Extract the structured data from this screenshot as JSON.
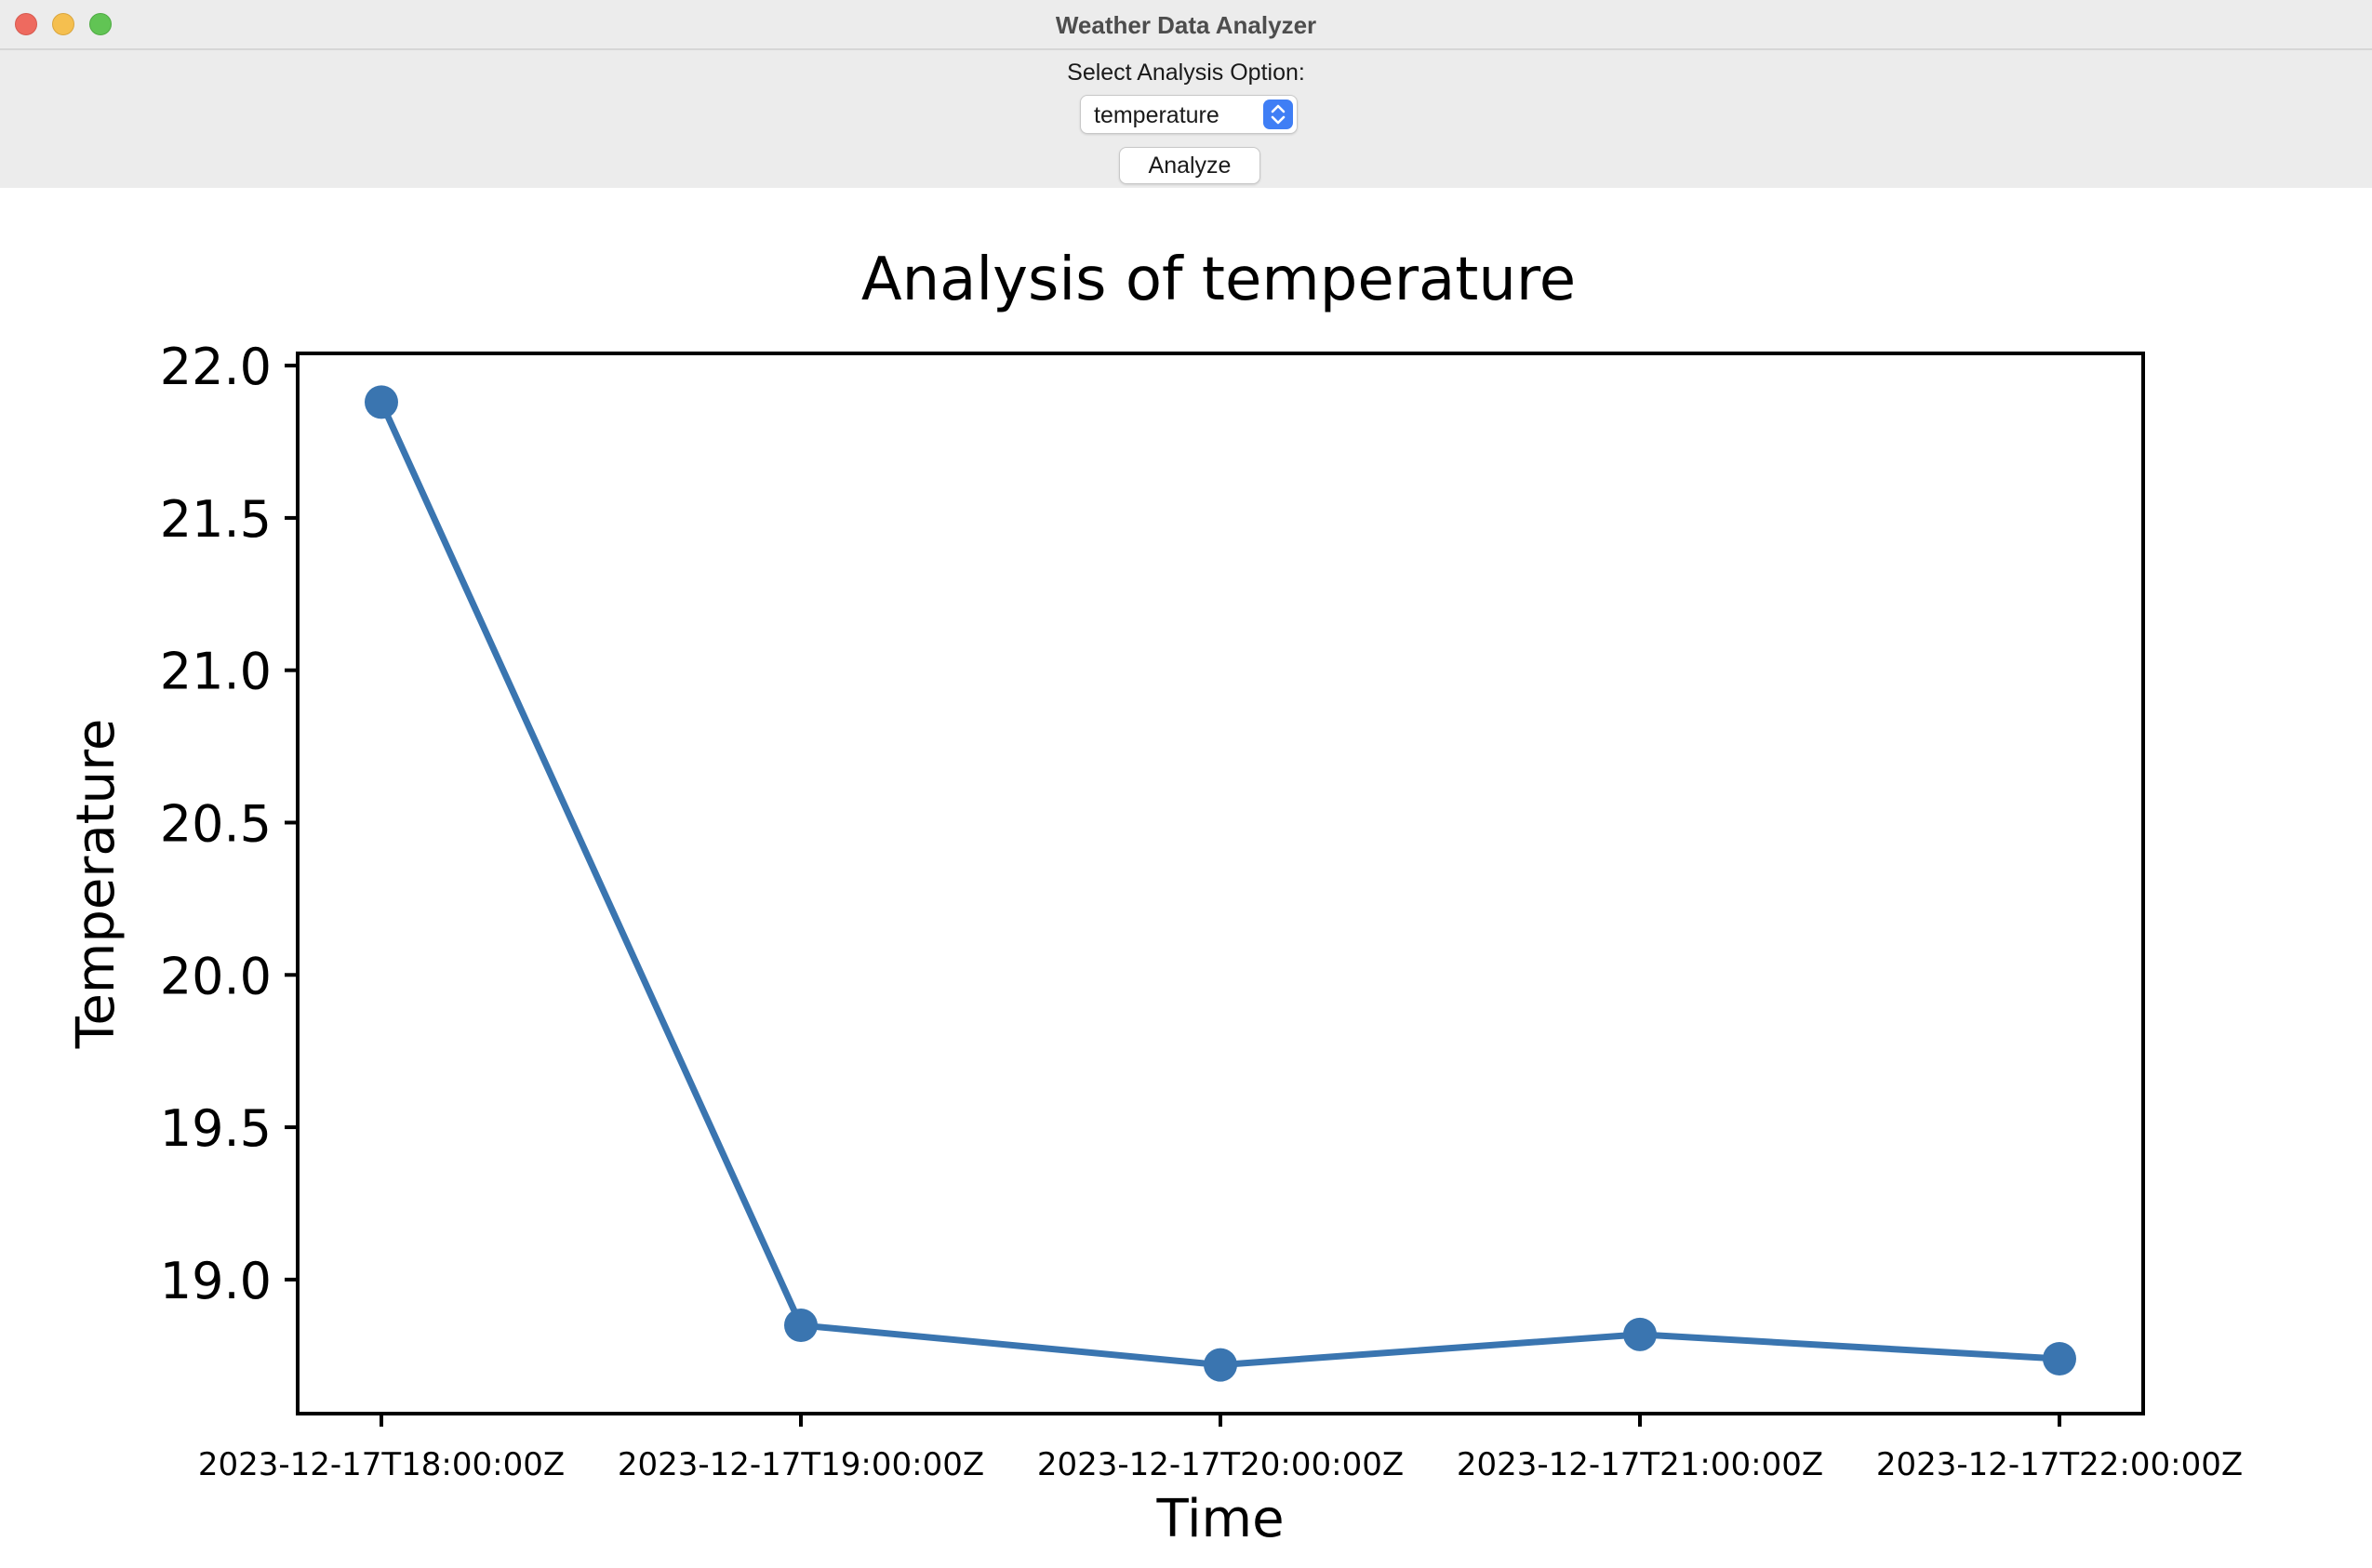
{
  "window": {
    "title": "Weather Data Analyzer"
  },
  "controls": {
    "option_label": "Select Analysis Option:",
    "selected_option": "temperature",
    "analyze_label": "Analyze"
  },
  "colors": {
    "series": "#3a75b0",
    "axis": "#000000"
  },
  "chart_data": {
    "type": "line",
    "title": "Analysis of temperature",
    "xlabel": "Time",
    "ylabel": "Temperature",
    "categories": [
      "2023-12-17T18:00:00Z",
      "2023-12-17T19:00:00Z",
      "2023-12-17T20:00:00Z",
      "2023-12-17T21:00:00Z",
      "2023-12-17T22:00:00Z"
    ],
    "values": [
      21.88,
      18.85,
      18.72,
      18.82,
      18.74
    ],
    "ylim": [
      18.56,
      22.04
    ],
    "yticks": [
      19.0,
      19.5,
      20.0,
      20.5,
      21.0,
      21.5,
      22.0
    ],
    "ytick_labels": [
      "19.0",
      "19.5",
      "20.0",
      "20.5",
      "21.0",
      "21.5",
      "22.0"
    ],
    "grid": false,
    "markers": true
  }
}
